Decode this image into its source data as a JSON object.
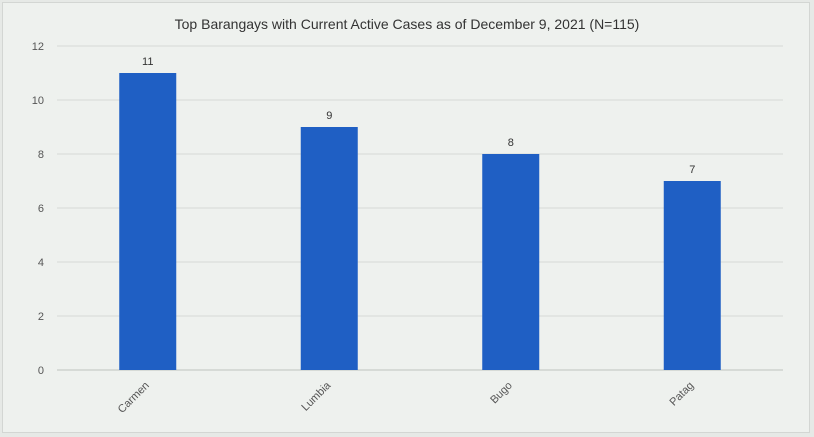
{
  "chart_data": {
    "type": "bar",
    "title": "Top Barangays with Current Active Cases as of December 9, 2021 (N=115)",
    "categories": [
      "Carmen",
      "Lumbia",
      "Bugo",
      "Patag"
    ],
    "values": [
      11,
      9,
      8,
      7
    ],
    "data_labels": [
      "11",
      "9",
      "8",
      "7"
    ],
    "ylim": [
      0,
      12
    ],
    "yticks": [
      "0",
      "2",
      "4",
      "6",
      "8",
      "10",
      "12"
    ],
    "grid": true,
    "legend": "none",
    "bar_color": "#1f5fc4"
  }
}
